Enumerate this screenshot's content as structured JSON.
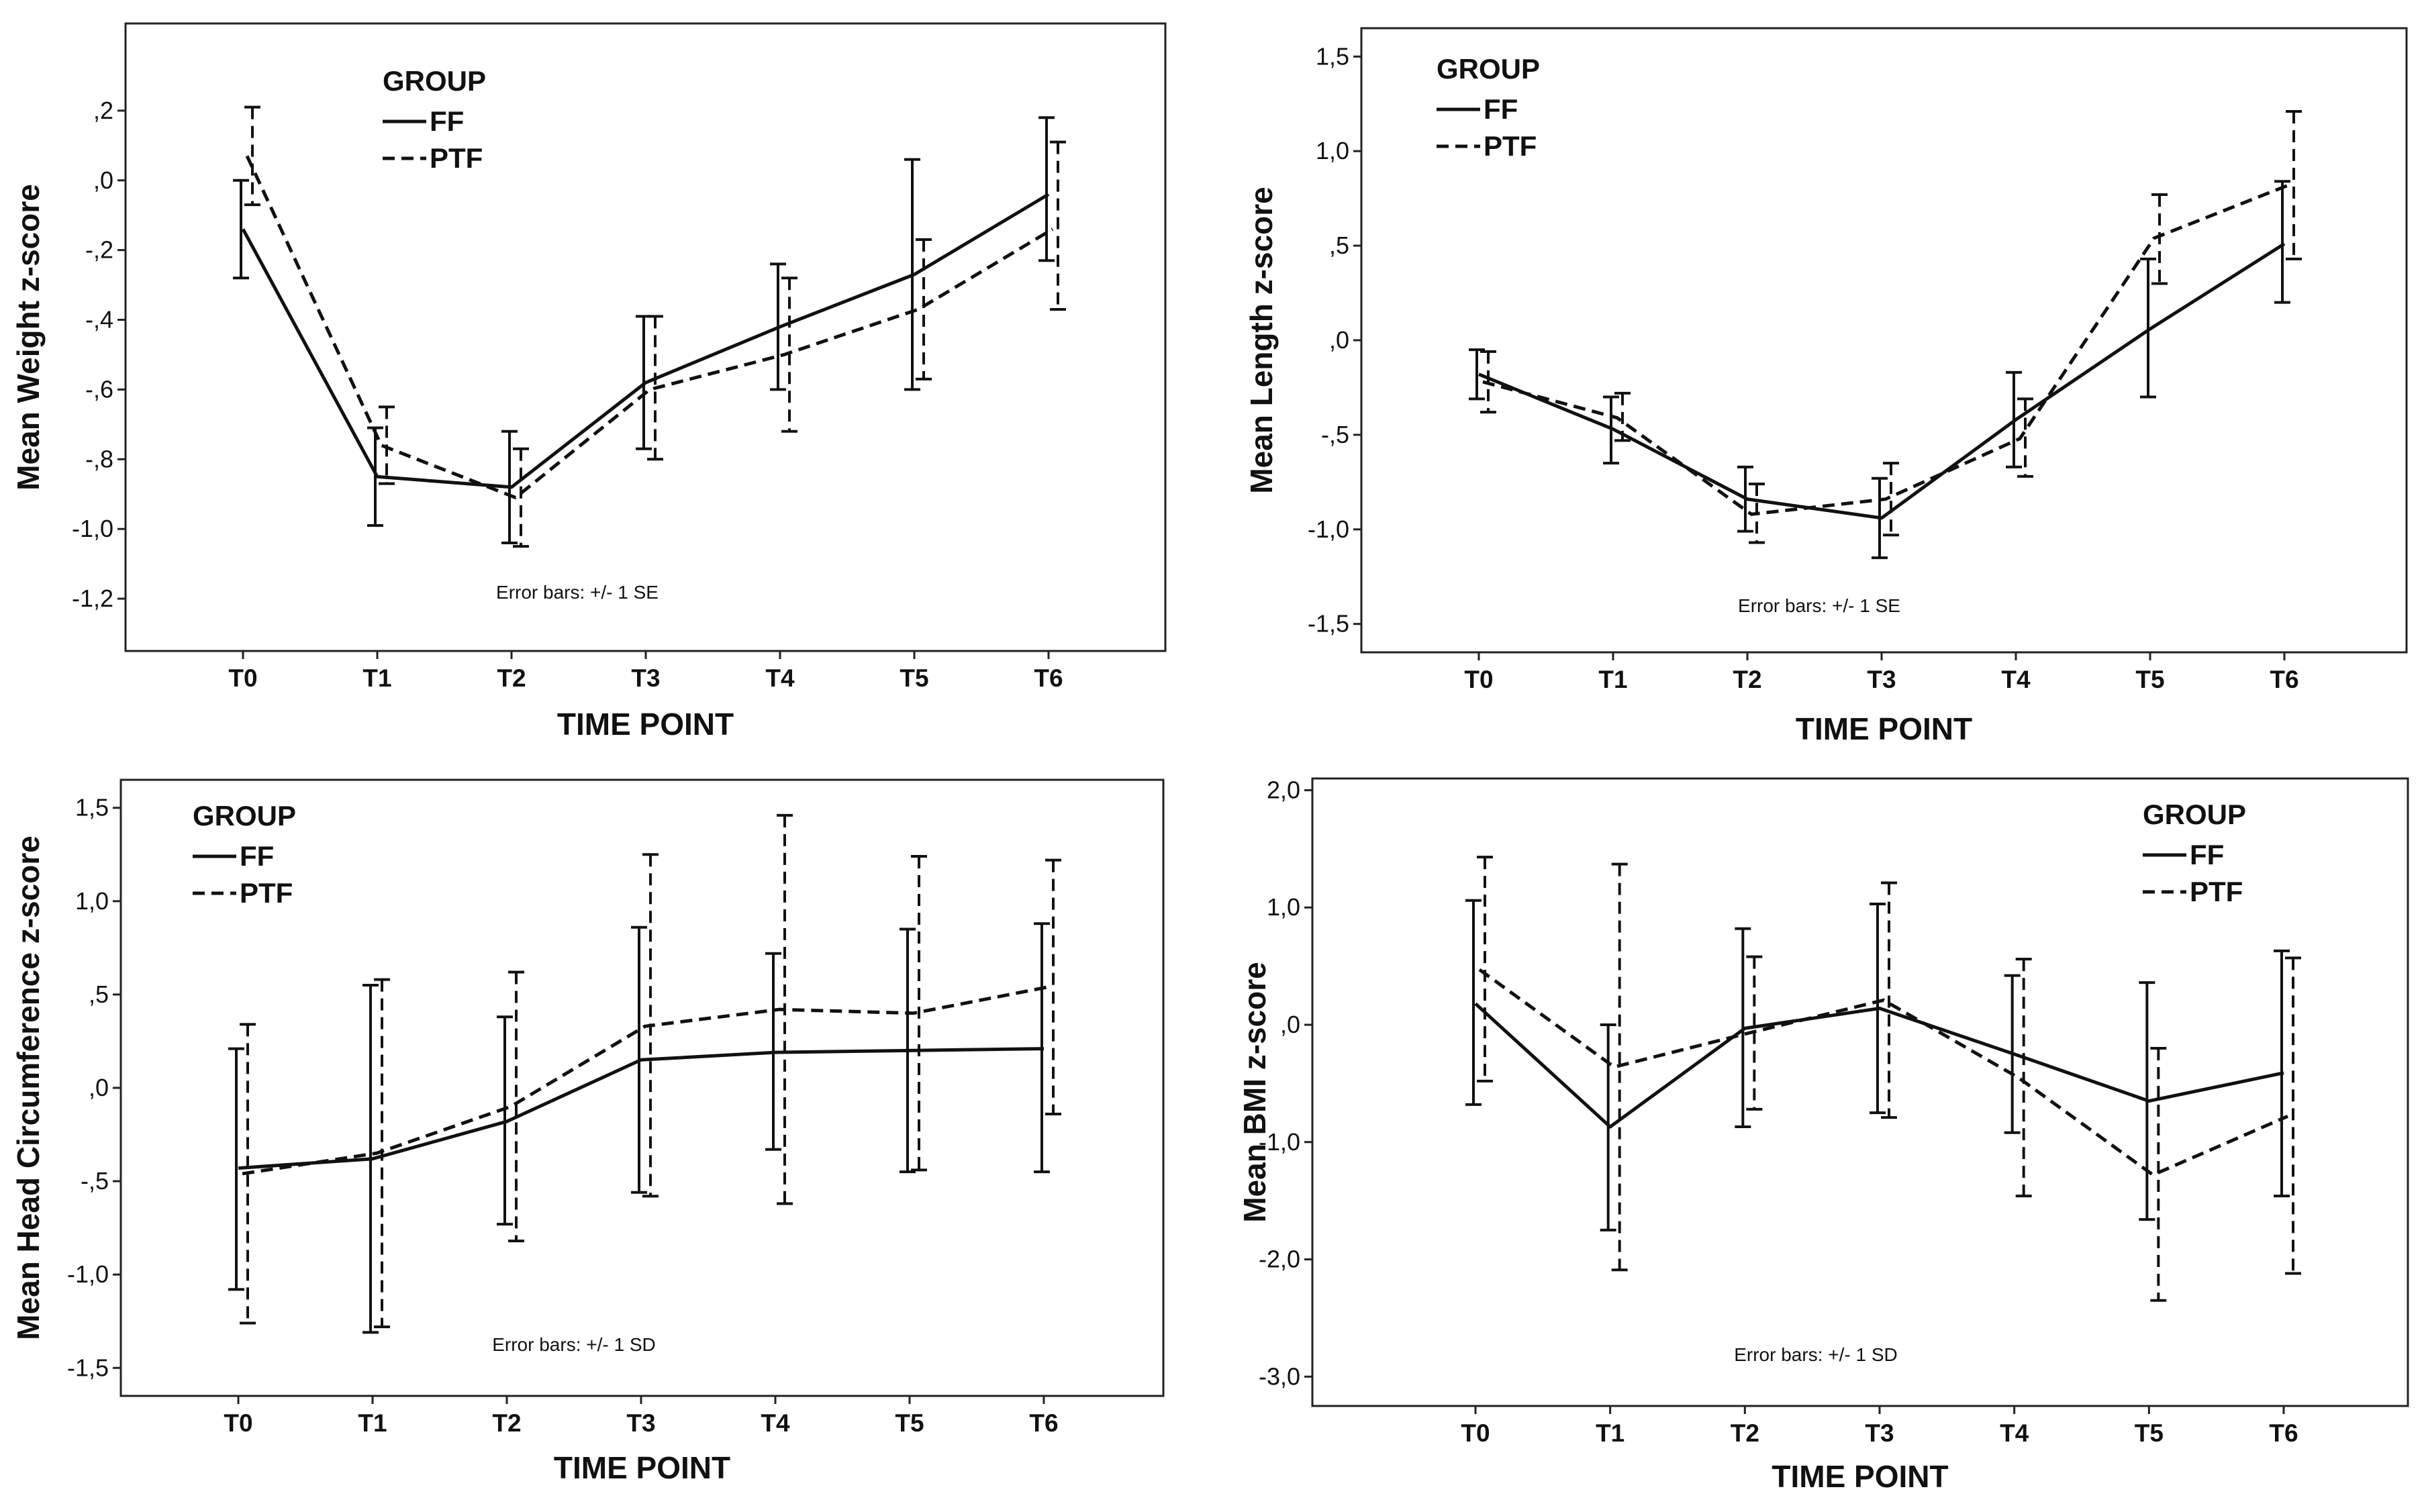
{
  "chart_data": [
    {
      "type": "line",
      "xlabel": "TIME POINT",
      "ylabel": "Mean Weight z-score",
      "categories": [
        "T0",
        "T1",
        "T2",
        "T3",
        "T4",
        "T5",
        "T6"
      ],
      "yticks": [
        0.2,
        0.0,
        -0.2,
        -0.4,
        -0.6,
        -0.8,
        -1.0,
        -1.2
      ],
      "ytick_labels": [
        ",2",
        ",0",
        "-,2",
        "-,4",
        "-,6",
        "-,8",
        "-1,0",
        "-1,2"
      ],
      "ylim": [
        -1.35,
        0.45
      ],
      "legend": {
        "title": "GROUP",
        "position": "top-left"
      },
      "note": "Error bars: +/- 1 SE",
      "series": [
        {
          "name": "FF",
          "style": "solid",
          "values": [
            -0.14,
            -0.85,
            -0.88,
            -0.58,
            -0.42,
            -0.27,
            -0.04
          ],
          "err_low": [
            -0.28,
            -0.99,
            -1.04,
            -0.77,
            -0.6,
            -0.6,
            -0.23
          ],
          "err_high": [
            0.0,
            -0.71,
            -0.72,
            -0.39,
            -0.24,
            0.06,
            0.18
          ]
        },
        {
          "name": "PTF",
          "style": "dashed",
          "values": [
            0.07,
            -0.76,
            -0.91,
            -0.6,
            -0.5,
            -0.37,
            -0.14
          ],
          "err_low": [
            -0.07,
            -0.87,
            -1.05,
            -0.8,
            -0.72,
            -0.57,
            -0.37
          ],
          "err_high": [
            0.21,
            -0.65,
            -0.77,
            -0.39,
            -0.28,
            -0.17,
            0.11
          ]
        }
      ]
    },
    {
      "type": "line",
      "xlabel": "TIME POINT",
      "ylabel": "Mean Length z-score",
      "categories": [
        "T0",
        "T1",
        "T2",
        "T3",
        "T4",
        "T5",
        "T6"
      ],
      "yticks": [
        1.5,
        1.0,
        0.5,
        0.0,
        -0.5,
        -1.0,
        -1.5
      ],
      "ytick_labels": [
        "1,5",
        "1,0",
        ",5",
        ",0",
        "-,5",
        "-1,0",
        "-1,5"
      ],
      "ylim": [
        -1.65,
        1.65
      ],
      "legend": {
        "title": "GROUP",
        "position": "top-left"
      },
      "note": "Error bars: +/- 1 SE",
      "series": [
        {
          "name": "FF",
          "style": "solid",
          "values": [
            -0.18,
            -0.47,
            -0.84,
            -0.94,
            -0.42,
            0.06,
            0.51
          ],
          "err_low": [
            -0.31,
            -0.65,
            -1.01,
            -1.15,
            -0.67,
            -0.3,
            0.2
          ],
          "err_high": [
            -0.05,
            -0.3,
            -0.67,
            -0.73,
            -0.17,
            0.43,
            0.84
          ]
        },
        {
          "name": "PTF",
          "style": "dashed",
          "values": [
            -0.22,
            -0.41,
            -0.92,
            -0.84,
            -0.52,
            0.54,
            0.82
          ],
          "err_low": [
            -0.38,
            -0.53,
            -1.07,
            -1.03,
            -0.72,
            0.3,
            0.43
          ],
          "err_high": [
            -0.06,
            -0.28,
            -0.76,
            -0.65,
            -0.31,
            0.77,
            1.21
          ]
        }
      ]
    },
    {
      "type": "line",
      "xlabel": "TIME POINT",
      "ylabel": "Mean Head Circumference z-score",
      "categories": [
        "T0",
        "T1",
        "T2",
        "T3",
        "T4",
        "T5",
        "T6"
      ],
      "yticks": [
        1.5,
        1.0,
        0.5,
        0.0,
        -0.5,
        -1.0,
        -1.5
      ],
      "ytick_labels": [
        "1,5",
        "1,0",
        ",5",
        ",0",
        "-,5",
        "-1,0",
        "-1,5"
      ],
      "ylim": [
        -1.65,
        1.65
      ],
      "legend": {
        "title": "GROUP",
        "position": "top-left"
      },
      "note": "Error bars: +/- 1 SD",
      "series": [
        {
          "name": "FF",
          "style": "solid",
          "values": [
            -0.43,
            -0.38,
            -0.18,
            0.15,
            0.19,
            0.2,
            0.21
          ],
          "err_low": [
            -1.08,
            -1.31,
            -0.73,
            -0.56,
            -0.33,
            -0.45,
            -0.45
          ],
          "err_high": [
            0.21,
            0.55,
            0.38,
            0.86,
            0.72,
            0.85,
            0.88
          ]
        },
        {
          "name": "PTF",
          "style": "dashed",
          "values": [
            -0.46,
            -0.35,
            -0.1,
            0.33,
            0.42,
            0.4,
            0.54
          ],
          "err_low": [
            -1.26,
            -1.28,
            -0.82,
            -0.58,
            -0.62,
            -0.44,
            -0.14
          ],
          "err_high": [
            0.34,
            0.58,
            0.62,
            1.25,
            1.46,
            1.24,
            1.22
          ]
        }
      ]
    },
    {
      "type": "line",
      "xlabel": "TIME POINT",
      "ylabel": "Mean BMI z-score",
      "categories": [
        "T0",
        "T1",
        "T2",
        "T3",
        "T4",
        "T5",
        "T6"
      ],
      "yticks": [
        2.0,
        1.0,
        0.0,
        -1.0,
        -2.0,
        -3.0
      ],
      "ytick_labels": [
        "2,0",
        "1,0",
        ",0",
        "-1,0",
        "-2,0",
        "-3,0"
      ],
      "ylim": [
        -3.25,
        2.1
      ],
      "legend": {
        "title": "GROUP",
        "position": "top-right"
      },
      "note": "Error bars: +/- 1 SD",
      "series": [
        {
          "name": "FF",
          "style": "solid",
          "values": [
            0.18,
            -0.87,
            -0.03,
            0.14,
            -0.25,
            -0.65,
            -0.41
          ],
          "err_low": [
            -0.68,
            -1.75,
            -0.87,
            -0.75,
            -0.92,
            -1.66,
            -1.46
          ],
          "err_high": [
            1.06,
            0.0,
            0.82,
            1.03,
            0.42,
            0.36,
            0.63
          ]
        },
        {
          "name": "PTF",
          "style": "dashed",
          "values": [
            0.47,
            -0.36,
            -0.07,
            0.21,
            -0.45,
            -1.28,
            -0.78
          ],
          "err_low": [
            -0.48,
            -2.09,
            -0.72,
            -0.79,
            -1.46,
            -2.35,
            -2.12
          ],
          "err_high": [
            1.43,
            1.37,
            0.58,
            1.21,
            0.56,
            -0.2,
            0.57
          ]
        }
      ]
    }
  ]
}
